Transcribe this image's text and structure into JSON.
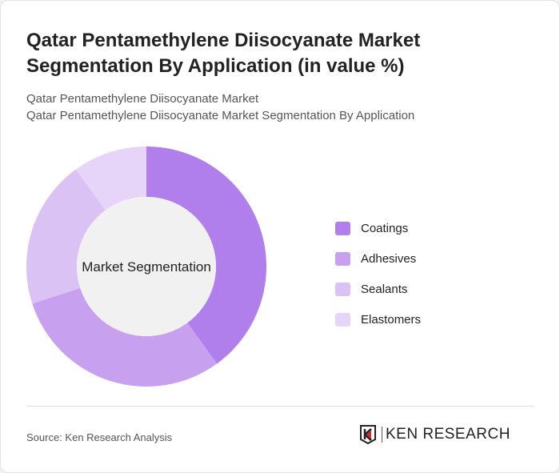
{
  "title": "Qatar Pentamethylene Diisocyanate Market Segmentation By Application (in value %)",
  "subtitle1": "Qatar Pentamethylene Diisocyanate Market",
  "subtitle2": "Qatar Pentamethylene Diisocyanate Market Segmentation By Application",
  "chart_data": {
    "type": "pie",
    "donut": true,
    "center_label": "Market Segmentation",
    "categories": [
      "Coatings",
      "Adhesives",
      "Sealants",
      "Elastomers"
    ],
    "values": [
      40,
      30,
      20,
      10
    ],
    "colors": [
      "#b07fec",
      "#c7a0f0",
      "#dac2f5",
      "#e6d5f8"
    ],
    "legend_position": "right"
  },
  "footer": {
    "source": "Source: Ken Research Analysis",
    "logo_text": "KEN RESEARCH"
  }
}
